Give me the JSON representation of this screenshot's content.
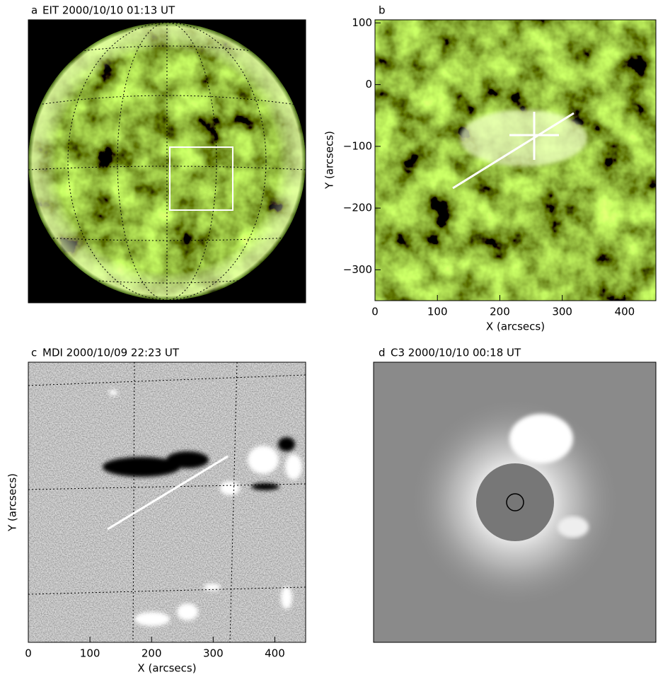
{
  "panels": [
    {
      "letter": "a",
      "title": "EIT 2000/10/10 01:13 UT"
    },
    {
      "letter": "b",
      "xlabel": "X (arcsecs)",
      "ylabel": "Y (arcsecs)",
      "xlim": [
        0,
        450
      ],
      "ylim": [
        -350,
        105
      ],
      "xticks": [
        0,
        100,
        200,
        300,
        400
      ],
      "yticks": [
        100,
        0,
        {
          "value": -100,
          "label": "−100"
        },
        {
          "value": -200,
          "label": "−200"
        },
        {
          "value": -300,
          "label": "−300"
        }
      ]
    },
    {
      "letter": "c",
      "title": "MDI 2000/10/09 22:23 UT",
      "xlabel": "X (arcsecs)",
      "ylabel": "Y (arcsecs)",
      "xlim": [
        0,
        450
      ],
      "xticks": [
        0,
        100,
        200,
        300,
        400
      ]
    },
    {
      "letter": "d",
      "title": "C3 2000/10/10 00:18 UT"
    }
  ]
}
